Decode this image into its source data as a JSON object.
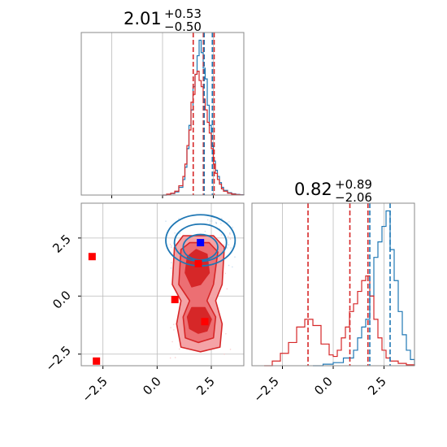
{
  "colors": {
    "red": "#d62728",
    "blue": "#1f77b4",
    "grid": "#bbbbbb",
    "light_red": "#f4a3a6",
    "mid_red": "#ec6f73",
    "marker_blue": "#0000ff",
    "marker_red": "#ff0000"
  },
  "titles": {
    "p1": {
      "value": "2.01",
      "sup": "+0.53",
      "sub": "−0.50"
    },
    "p2": {
      "value": "0.82",
      "sup": "+0.89",
      "sub": "−2.06"
    }
  },
  "ticks": [
    "−2.5",
    "0.0",
    "2.5"
  ],
  "chart_data": [
    {
      "type": "histogram",
      "panel": "top-left marginal (parameter 1)",
      "xlim": [
        -4,
        4
      ],
      "grid": true,
      "series": [
        {
          "color": "blue",
          "step": true,
          "x": [
            0.0,
            0.2,
            0.4,
            0.6,
            0.8,
            1.0,
            1.1,
            1.2,
            1.3,
            1.4,
            1.5,
            1.6,
            1.7,
            1.8,
            1.9,
            2.0,
            2.1,
            2.2,
            2.3,
            2.4,
            2.5,
            2.6,
            2.7,
            2.8,
            2.9,
            3.0,
            3.2,
            3.4,
            3.6,
            3.8,
            4.0
          ],
          "y": [
            0,
            0.005,
            0.01,
            0.02,
            0.05,
            0.1,
            0.18,
            0.3,
            0.45,
            0.55,
            0.7,
            0.78,
            0.9,
            1.0,
            0.92,
            0.82,
            0.75,
            0.58,
            0.45,
            0.32,
            0.22,
            0.16,
            0.12,
            0.08,
            0.05,
            0.03,
            0.015,
            0.008,
            0.004,
            0.002,
            0
          ]
        },
        {
          "color": "red",
          "step": true,
          "x": [
            0.0,
            0.2,
            0.4,
            0.6,
            0.8,
            1.0,
            1.1,
            1.2,
            1.3,
            1.4,
            1.5,
            1.6,
            1.7,
            1.8,
            1.9,
            2.0,
            2.1,
            2.2,
            2.3,
            2.4,
            2.5,
            2.6,
            2.7,
            2.8,
            2.9,
            3.0,
            3.2,
            3.4,
            3.6,
            3.8,
            4.0
          ],
          "y": [
            0,
            0.006,
            0.012,
            0.025,
            0.06,
            0.12,
            0.2,
            0.32,
            0.42,
            0.6,
            0.65,
            0.78,
            0.8,
            0.74,
            0.7,
            0.62,
            0.55,
            0.47,
            0.4,
            0.3,
            0.2,
            0.14,
            0.1,
            0.07,
            0.04,
            0.025,
            0.012,
            0.006,
            0.003,
            0.001,
            0
          ]
        }
      ],
      "vlines": [
        {
          "x": 1.51,
          "color": "red"
        },
        {
          "x": 2.01,
          "color": "red"
        },
        {
          "x": 2.54,
          "color": "red"
        },
        {
          "x": 2.05,
          "color": "blue"
        },
        {
          "x": 2.45,
          "color": "blue"
        }
      ]
    },
    {
      "type": "histogram",
      "panel": "bottom-right marginal (parameter 2)",
      "xlim": [
        -4,
        4
      ],
      "xticks": [
        -2.5,
        0.0,
        2.5
      ],
      "grid": true,
      "series": [
        {
          "color": "blue",
          "step": true,
          "x": [
            -1.0,
            -0.5,
            0.0,
            0.5,
            1.0,
            1.2,
            1.4,
            1.6,
            1.8,
            2.0,
            2.2,
            2.4,
            2.6,
            2.8,
            3.0,
            3.2,
            3.4,
            3.6,
            3.8,
            4.0
          ],
          "y": [
            0,
            0.01,
            0.02,
            0.05,
            0.1,
            0.18,
            0.25,
            0.3,
            0.45,
            0.7,
            0.8,
            0.9,
            1.0,
            0.75,
            0.55,
            0.35,
            0.2,
            0.1,
            0.04,
            0
          ]
        },
        {
          "color": "red",
          "step": true,
          "x": [
            -3.4,
            -3.0,
            -2.6,
            -2.2,
            -1.8,
            -1.4,
            -1.0,
            -0.6,
            -0.2,
            0.0,
            0.2,
            0.4,
            0.6,
            0.8,
            1.0,
            1.2,
            1.4,
            1.6,
            1.8,
            2.0,
            2.2,
            2.4,
            2.6,
            2.8,
            3.2,
            3.6,
            4.0
          ],
          "y": [
            0,
            0.03,
            0.08,
            0.15,
            0.25,
            0.3,
            0.26,
            0.14,
            0.07,
            0.06,
            0.1,
            0.18,
            0.25,
            0.35,
            0.4,
            0.48,
            0.55,
            0.58,
            0.45,
            0.3,
            0.18,
            0.1,
            0.05,
            0.03,
            0.015,
            0.006,
            0
          ]
        }
      ],
      "vlines": [
        {
          "x": -1.24,
          "color": "red"
        },
        {
          "x": 0.82,
          "color": "red"
        },
        {
          "x": 1.71,
          "color": "red"
        },
        {
          "x": 1.8,
          "color": "blue"
        },
        {
          "x": 2.8,
          "color": "blue"
        }
      ]
    },
    {
      "type": "contour",
      "panel": "bottom-left joint (parameter 1 vs parameter 2)",
      "xlim": [
        -3.5,
        4.0
      ],
      "ylim": [
        -3.0,
        4.0
      ],
      "xticks": [
        -2.5,
        0.0,
        2.5
      ],
      "yticks": [
        -2.5,
        0.0,
        2.5
      ],
      "grid": true,
      "blue_contours": [
        {
          "cx": 2.0,
          "cy": 2.4,
          "rx": 1.6,
          "ry": 1.1
        },
        {
          "cx": 2.0,
          "cy": 2.3,
          "rx": 1.2,
          "ry": 0.8
        },
        {
          "cx": 2.0,
          "cy": 2.1,
          "rx": 0.8,
          "ry": 0.55
        }
      ],
      "red_filled_regions": [
        {
          "level": "outer",
          "points": [
            [
              0.8,
              2.1
            ],
            [
              1.2,
              2.6
            ],
            [
              2.6,
              2.6
            ],
            [
              3.1,
              2.1
            ],
            [
              3.0,
              0.5
            ],
            [
              2.7,
              -0.2
            ],
            [
              3.0,
              -1.2
            ],
            [
              2.9,
              -2.2
            ],
            [
              2.0,
              -2.4
            ],
            [
              1.1,
              -2.2
            ],
            [
              0.9,
              -1.2
            ],
            [
              1.1,
              -0.2
            ],
            [
              0.7,
              0.5
            ]
          ]
        },
        {
          "level": "middle",
          "points": [
            [
              1.1,
              2.0
            ],
            [
              1.5,
              2.3
            ],
            [
              2.4,
              2.3
            ],
            [
              2.8,
              1.9
            ],
            [
              2.6,
              0.5
            ],
            [
              2.3,
              -0.2
            ],
            [
              2.7,
              -0.9
            ],
            [
              2.6,
              -1.8
            ],
            [
              1.9,
              -2.0
            ],
            [
              1.3,
              -1.8
            ],
            [
              1.2,
              -0.9
            ],
            [
              1.5,
              -0.2
            ],
            [
              1.0,
              0.5
            ]
          ]
        },
        {
          "level": "inner",
          "points": [
            [
              1.4,
              1.7
            ],
            [
              1.8,
              2.0
            ],
            [
              2.3,
              1.8
            ],
            [
              2.4,
              1.0
            ],
            [
              2.0,
              0.5
            ],
            [
              1.6,
              0.4
            ],
            [
              1.3,
              1.0
            ]
          ]
        },
        {
          "level": "inner",
          "points": [
            [
              1.6,
              -0.5
            ],
            [
              2.2,
              -0.5
            ],
            [
              2.5,
              -1.0
            ],
            [
              2.3,
              -1.5
            ],
            [
              1.9,
              -1.6
            ],
            [
              1.5,
              -1.4
            ],
            [
              1.4,
              -0.9
            ]
          ]
        }
      ],
      "markers": [
        {
          "x": 2.0,
          "y": 2.3,
          "color": "blue",
          "shape": "square"
        },
        {
          "x": 1.9,
          "y": 1.4,
          "color": "red",
          "shape": "square"
        },
        {
          "x": 0.82,
          "y": -0.15,
          "color": "red",
          "shape": "square"
        },
        {
          "x": 2.2,
          "y": -1.1,
          "color": "red",
          "shape": "square"
        },
        {
          "x": -3.0,
          "y": 1.7,
          "color": "red",
          "shape": "square"
        },
        {
          "x": -2.8,
          "y": -2.8,
          "color": "red",
          "shape": "square"
        }
      ]
    }
  ]
}
